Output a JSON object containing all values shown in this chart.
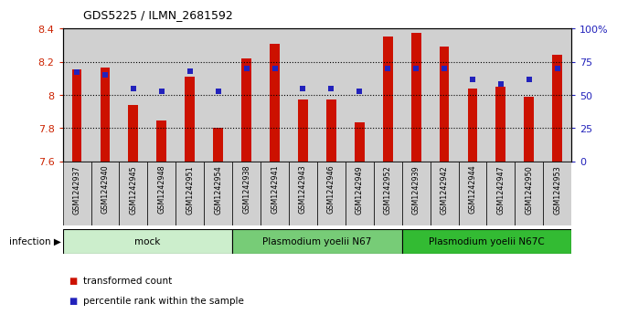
{
  "title": "GDS5225 / ILMN_2681592",
  "samples": [
    "GSM1242937",
    "GSM1242940",
    "GSM1242945",
    "GSM1242948",
    "GSM1242951",
    "GSM1242954",
    "GSM1242938",
    "GSM1242941",
    "GSM1242943",
    "GSM1242946",
    "GSM1242949",
    "GSM1242952",
    "GSM1242939",
    "GSM1242942",
    "GSM1242944",
    "GSM1242947",
    "GSM1242950",
    "GSM1242953"
  ],
  "bar_values": [
    8.155,
    8.165,
    7.94,
    7.845,
    8.11,
    7.8,
    8.22,
    8.31,
    7.97,
    7.97,
    7.835,
    8.35,
    8.375,
    8.29,
    8.04,
    8.05,
    7.99,
    8.24
  ],
  "percentile_values": [
    67,
    65,
    55,
    53,
    68,
    53,
    70,
    70,
    55,
    55,
    53,
    70,
    70,
    70,
    62,
    58,
    62,
    70
  ],
  "ymin": 7.6,
  "ymax": 8.4,
  "bar_color": "#cc1100",
  "dot_color": "#2222bb",
  "groups": [
    {
      "label": "mock",
      "start": 0,
      "end": 6,
      "color": "#cceecc"
    },
    {
      "label": "Plasmodium yoelii N67",
      "start": 6,
      "end": 12,
      "color": "#77cc77"
    },
    {
      "label": "Plasmodium yoelii N67C",
      "start": 12,
      "end": 18,
      "color": "#33bb33"
    }
  ],
  "infection_label": "infection",
  "legend_bar_label": "transformed count",
  "legend_dot_label": "percentile rank within the sample",
  "left_yticks": [
    7.6,
    7.8,
    8.0,
    8.2,
    8.4
  ],
  "left_yticklabels": [
    "7.6",
    "7.8",
    "8",
    "8.2",
    "8.4"
  ],
  "right_yticks": [
    0,
    25,
    50,
    75,
    100
  ],
  "right_yticklabels": [
    "0",
    "25",
    "50",
    "75",
    "100%"
  ],
  "tick_color_left": "#cc2200",
  "tick_color_right": "#2222bb",
  "col_bg_color": "#d0d0d0",
  "plot_bg_color": "#ffffff"
}
